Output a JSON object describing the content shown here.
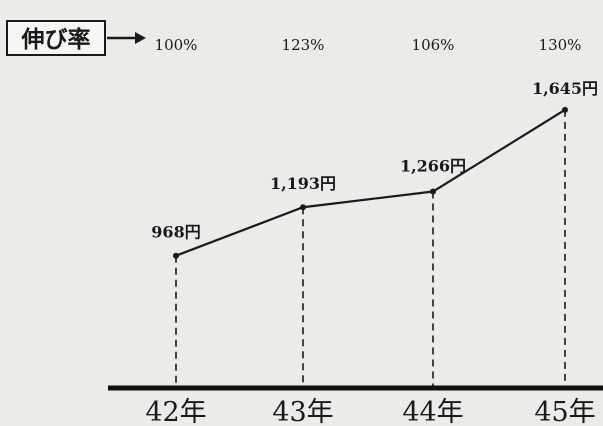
{
  "legend_label": "伸び率",
  "chart_data": {
    "type": "line",
    "categories": [
      "42年",
      "43年",
      "44年",
      "45年"
    ],
    "values": [
      968,
      1193,
      1266,
      1645
    ],
    "value_labels": [
      "968円",
      "1,193円",
      "1,266円",
      "1,645円"
    ],
    "growth_rates": [
      "100%",
      "123%",
      "106%",
      "130%"
    ],
    "ylim": [
      600,
      1700
    ],
    "grid": false
  },
  "colors": {
    "background": "#ecebe7",
    "ink": "#1a1a1a"
  }
}
